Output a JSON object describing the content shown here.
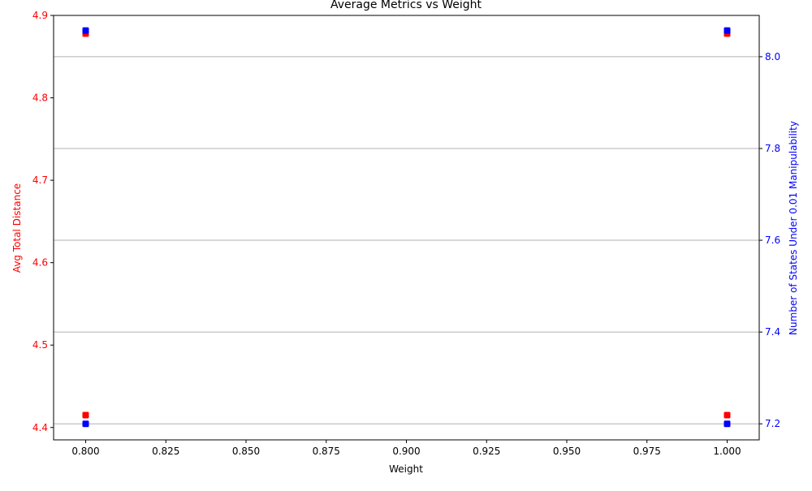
{
  "chart_data": {
    "type": "scatter",
    "title": "Average Metrics vs Weight",
    "xlabel": "Weight",
    "ylabel_left": "Avg Total Distance",
    "ylabel_right": "Number of States Under 0.01 Manipulability",
    "xlim": [
      0.79,
      1.01
    ],
    "ylim_left": [
      4.385,
      4.9
    ],
    "ylim_right": [
      7.165,
      8.09
    ],
    "x_ticks": [
      "0.800",
      "0.825",
      "0.850",
      "0.875",
      "0.900",
      "0.925",
      "0.950",
      "0.975",
      "1.000"
    ],
    "y_ticks_left": [
      "4.4",
      "4.5",
      "4.6",
      "4.7",
      "4.8",
      "4.9"
    ],
    "y_ticks_right": [
      "7.2",
      "7.4",
      "7.6",
      "7.8",
      "8.0"
    ],
    "grid": "horizontal lines at right-axis ticks",
    "colors": {
      "left_axis": "#ff0000",
      "right_axis": "#0000ff",
      "frame": "#000000",
      "grid": "#b0b0b0"
    },
    "series": [
      {
        "axis": "left",
        "color": "#ff0000",
        "x": [
          0.8,
          0.8,
          1.0,
          1.0
        ],
        "y": [
          4.415,
          4.878,
          4.415,
          4.878
        ]
      },
      {
        "axis": "right",
        "color": "#0000ff",
        "x": [
          0.8,
          0.8,
          1.0,
          1.0
        ],
        "y": [
          7.2,
          8.057,
          7.2,
          8.057
        ]
      }
    ]
  }
}
